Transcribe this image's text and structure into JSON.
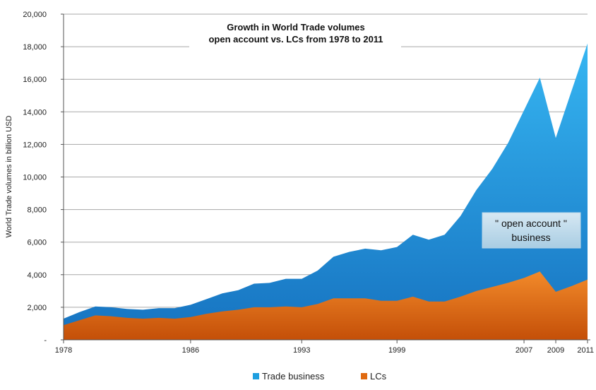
{
  "chart_data": {
    "type": "area",
    "stacked": false,
    "title": "Growth in World Trade volumes",
    "subtitle": "open account vs. LCs from 1978 to 2011",
    "ylabel": "World Trade volumes in billion USD",
    "xlabel": "",
    "ylim": [
      0,
      20000
    ],
    "xlim": [
      1978,
      2011
    ],
    "y_ticks": [
      "-",
      "2,000",
      "4,000",
      "6,000",
      "8,000",
      "10,000",
      "12,000",
      "14,000",
      "16,000",
      "18,000",
      "20,000"
    ],
    "x_ticks": [
      "1978",
      "1986",
      "1993",
      "1999",
      "2007",
      "2009",
      "2011"
    ],
    "x": [
      1978,
      1979,
      1980,
      1981,
      1982,
      1983,
      1984,
      1985,
      1986,
      1987,
      1988,
      1989,
      1990,
      1991,
      1992,
      1993,
      1994,
      1995,
      1996,
      1997,
      1998,
      1999,
      2000,
      2001,
      2002,
      2003,
      2004,
      2005,
      2006,
      2007,
      2008,
      2009,
      2010,
      2011
    ],
    "series": [
      {
        "name": "Trade business",
        "color": "#1E9FE0",
        "values": [
          1300,
          1700,
          2050,
          2000,
          1900,
          1850,
          1950,
          1950,
          2150,
          2500,
          2850,
          3050,
          3450,
          3500,
          3750,
          3750,
          4250,
          5100,
          5400,
          5600,
          5500,
          5700,
          6450,
          6150,
          6450,
          7600,
          9200,
          10500,
          12100,
          14100,
          16100,
          12400,
          15300,
          18200
        ]
      },
      {
        "name": "LCs",
        "color": "#E06A10",
        "values": [
          900,
          1200,
          1500,
          1450,
          1350,
          1300,
          1350,
          1300,
          1400,
          1600,
          1750,
          1850,
          2000,
          2000,
          2050,
          2000,
          2200,
          2550,
          2550,
          2550,
          2400,
          2400,
          2650,
          2350,
          2350,
          2650,
          3000,
          3250,
          3500,
          3800,
          4200,
          2950,
          3300,
          3700
        ]
      }
    ],
    "annotation": {
      "line1": "\" open account \"",
      "line2": "business"
    },
    "grid": true,
    "legend_position": "bottom"
  }
}
